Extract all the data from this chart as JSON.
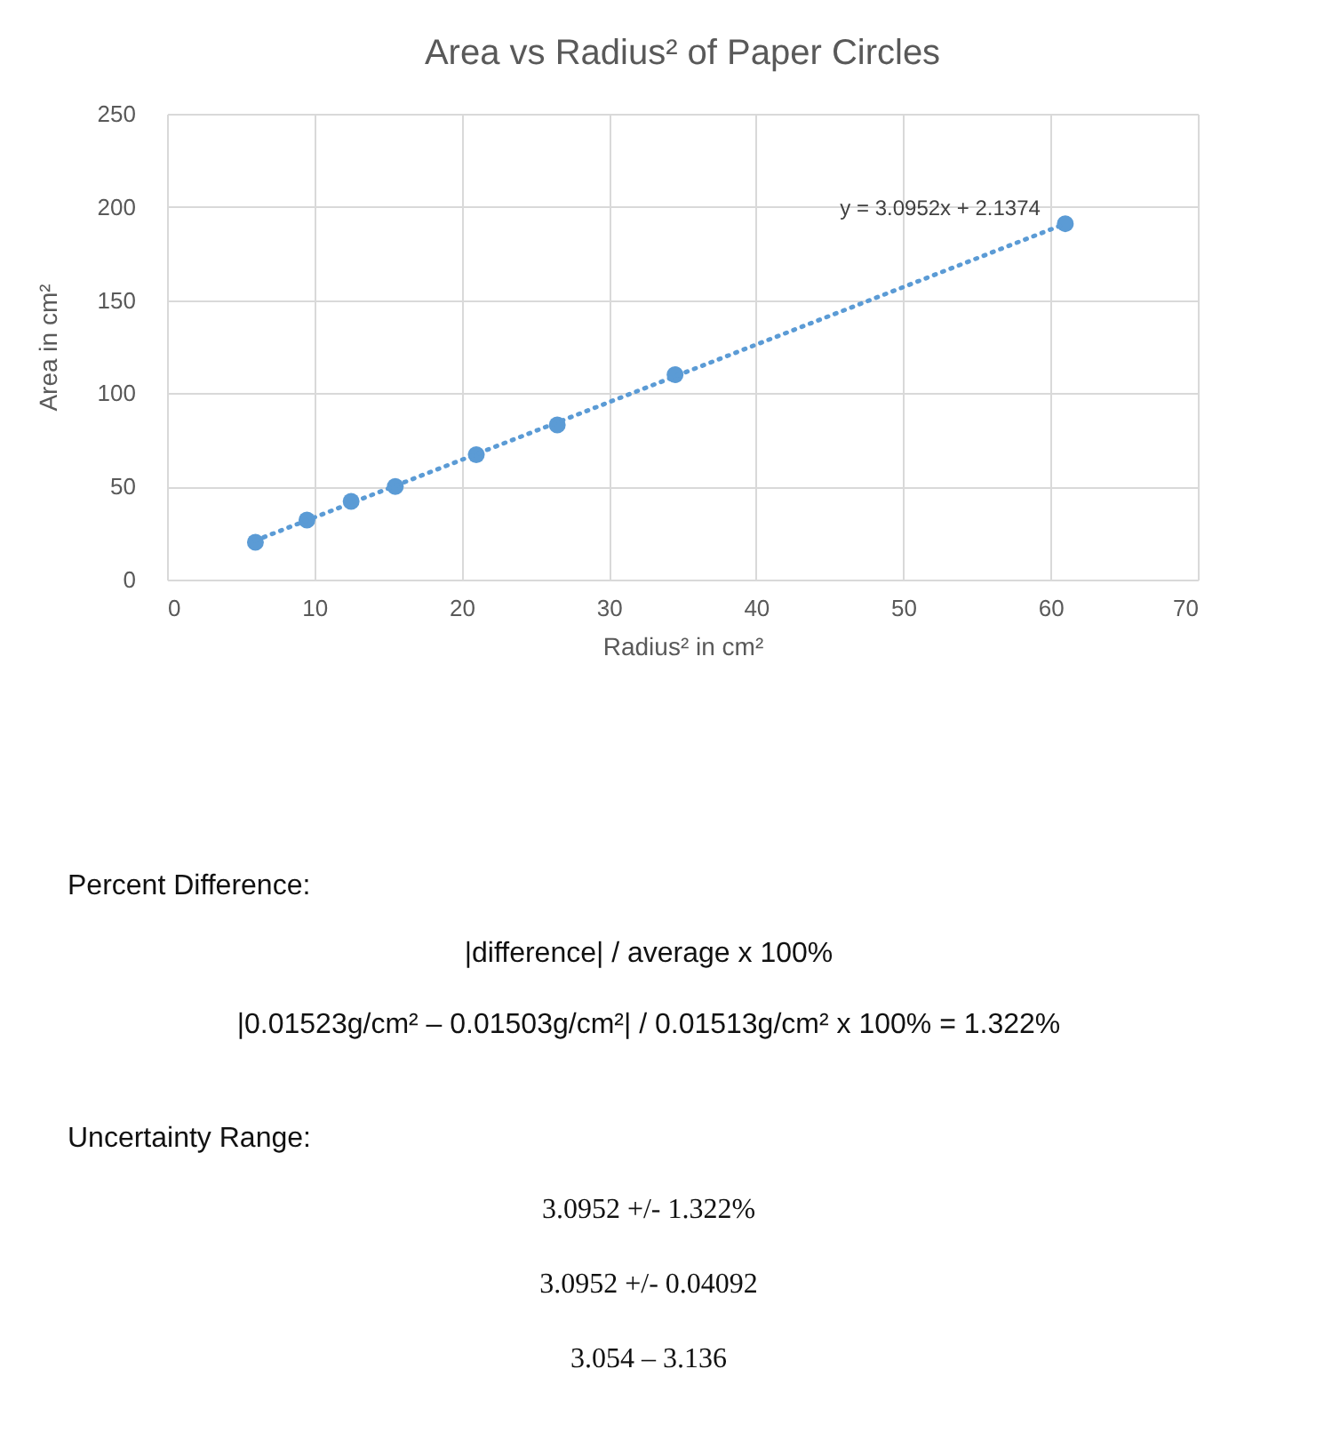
{
  "chart_data": {
    "type": "scatter",
    "title": "Area vs Radius² of Paper Circles",
    "xlabel": "Radius² in cm²",
    "ylabel": "Area in cm²",
    "xlim": [
      0,
      70
    ],
    "xticks": [
      0,
      10,
      20,
      30,
      40,
      50,
      60,
      70
    ],
    "ylim": [
      0,
      250
    ],
    "yticks": [
      0,
      50,
      100,
      150,
      200,
      250
    ],
    "grid": true,
    "marker": "circle",
    "series": [
      {
        "color": "#5b9bd5",
        "x": [
          6,
          9.5,
          12.5,
          15.5,
          21,
          26.5,
          34.5,
          61
        ],
        "values": [
          20,
          32,
          42,
          50,
          67,
          83,
          110,
          191
        ]
      },
      {
        "type": "line",
        "color": "#5b9bd5",
        "line_style": "dotted",
        "marker": "none",
        "x": [
          6,
          61
        ],
        "values": [
          21,
          191
        ]
      }
    ],
    "annotations": [
      "y = 3.0952x + 2.1374",
      "Percent Difference:",
      "|difference| / average x 100%",
      "|0.01523g/cm² – 0.01503g/cm²| / 0.01513g/cm² x 100% = 1.322%",
      "Uncertainty Range:",
      "3.0952 +/- 1.322%",
      "3.0952 +/- 0.04092",
      "3.054 – 3.136"
    ]
  }
}
